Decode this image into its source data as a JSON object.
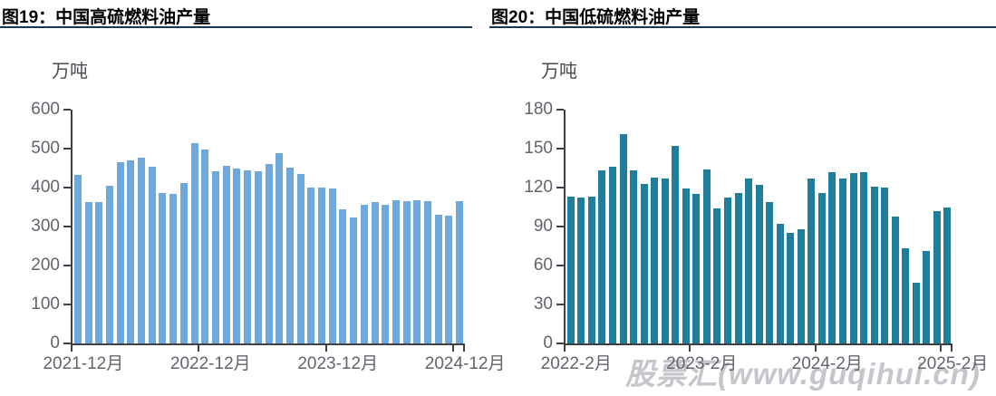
{
  "watermark": {
    "text": "股票汇(www.guqihui.cn)",
    "color": "#c5c5cb"
  },
  "style": {
    "accent_underline": "#17375e",
    "axis_color": "#3f3f46",
    "tick_label_color": "#63636d",
    "high_sulfur_bar_color": "#6fa8dc",
    "low_sulfur_bar_color": "#1f7e9b"
  },
  "chart_data": [
    {
      "type": "bar",
      "title": "图19：中国高硫燃料油产量",
      "ylabel": "万吨",
      "xlabel": "",
      "ylim": [
        0,
        600
      ],
      "y_step": 100,
      "grid": false,
      "legend": "none",
      "bar_color": "#6fa8dc",
      "y_tick_labels": [
        "600",
        "500",
        "400",
        "300",
        "200",
        "100",
        "0"
      ],
      "x_tick_labels": [
        "2021-12月",
        "2022-12月",
        "2023-12月",
        "2024-12月"
      ],
      "x_tick_indices": [
        0,
        12,
        24,
        36
      ],
      "categories": [
        "2021-12",
        "2022-01",
        "2022-02",
        "2022-03",
        "2022-04",
        "2022-05",
        "2022-06",
        "2022-07",
        "2022-08",
        "2022-09",
        "2022-10",
        "2022-11",
        "2022-12",
        "2023-01",
        "2023-02",
        "2023-03",
        "2023-04",
        "2023-05",
        "2023-06",
        "2023-07",
        "2023-08",
        "2023-09",
        "2023-10",
        "2023-11",
        "2023-12",
        "2024-01",
        "2024-02",
        "2024-03",
        "2024-04",
        "2024-05",
        "2024-06",
        "2024-07",
        "2024-08",
        "2024-09",
        "2024-10",
        "2024-11",
        "2024-12"
      ],
      "values": [
        433,
        363,
        363,
        405,
        464,
        470,
        477,
        453,
        387,
        384,
        412,
        514,
        497,
        442,
        455,
        448,
        444,
        442,
        460,
        488,
        451,
        434,
        399,
        400,
        398,
        345,
        323,
        355,
        362,
        357,
        368,
        366,
        368,
        366,
        330,
        327,
        365
      ]
    },
    {
      "type": "bar",
      "title": "图20：中国低硫燃料油产量",
      "ylabel": "万吨",
      "xlabel": "",
      "ylim": [
        0,
        180
      ],
      "y_step": 30,
      "grid": false,
      "legend": "none",
      "bar_color": "#1f7e9b",
      "y_tick_labels": [
        "180",
        "150",
        "120",
        "90",
        "60",
        "30",
        "0"
      ],
      "x_tick_labels": [
        "2022-2月",
        "2023-2月",
        "2024-2月",
        "2025-2月"
      ],
      "x_tick_indices": [
        0,
        12,
        24,
        36
      ],
      "categories": [
        "2022-02",
        "2022-03",
        "2022-04",
        "2022-05",
        "2022-06",
        "2022-07",
        "2022-08",
        "2022-09",
        "2022-10",
        "2022-11",
        "2022-12",
        "2023-01",
        "2023-02",
        "2023-03",
        "2023-04",
        "2023-05",
        "2023-06",
        "2023-07",
        "2023-08",
        "2023-09",
        "2023-10",
        "2023-11",
        "2023-12",
        "2024-01",
        "2024-02",
        "2024-03",
        "2024-04",
        "2024-05",
        "2024-06",
        "2024-07",
        "2024-08",
        "2024-09",
        "2024-10",
        "2024-11",
        "2024-12",
        "2025-01",
        "2025-02"
      ],
      "values": [
        113,
        112,
        113,
        133,
        136,
        161,
        133,
        123,
        128,
        127,
        152,
        119,
        115,
        134,
        104,
        112,
        116,
        127,
        122,
        109,
        92,
        85,
        88,
        127,
        116,
        132,
        127,
        131,
        132,
        121,
        120,
        98,
        73,
        47,
        71,
        102,
        105
      ]
    }
  ]
}
